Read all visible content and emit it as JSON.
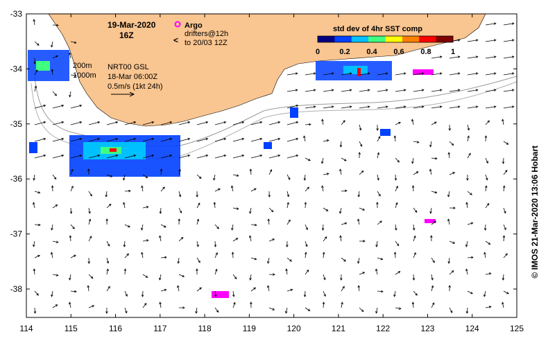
{
  "header": {
    "date": "19-Mar-2020",
    "hour": "16Z"
  },
  "argo_legend": {
    "label": "Argo",
    "color": "#ff00ff"
  },
  "drifter_legend": {
    "symbol": "<",
    "line1": "drifters@12h",
    "line2": "to 20/03 12Z",
    "color": "#ff00ff"
  },
  "colorbar": {
    "title": "std dev of 4hr SST comp",
    "ticks": [
      "0",
      "0.2",
      "0.4",
      "0.6",
      "0.8",
      "1"
    ],
    "colors": [
      "#000080",
      "#0040ff",
      "#00c0ff",
      "#40ff80",
      "#ffff00",
      "#ff8000",
      "#ff0000",
      "#800000"
    ]
  },
  "isobaths": {
    "shallow": "200m",
    "deep": "1000m"
  },
  "current_info": {
    "line1": "NRT00 GSL",
    "line2": "18-Mar 06:00Z",
    "line3": "0.5m/s (1kt 24h)"
  },
  "axes": {
    "x_ticks": [
      "114",
      "115",
      "116",
      "117",
      "118",
      "119",
      "120",
      "121",
      "122",
      "123",
      "124",
      "125"
    ],
    "y_ticks": [
      "-33",
      "-34",
      "-35",
      "-36",
      "-37",
      "-38"
    ]
  },
  "credit": "© IMOS 21-Mar-2020 13:06 Hobart",
  "colors": {
    "land": "#f9c590",
    "isobath": "#9a9a9a",
    "arrow": "#000000"
  }
}
